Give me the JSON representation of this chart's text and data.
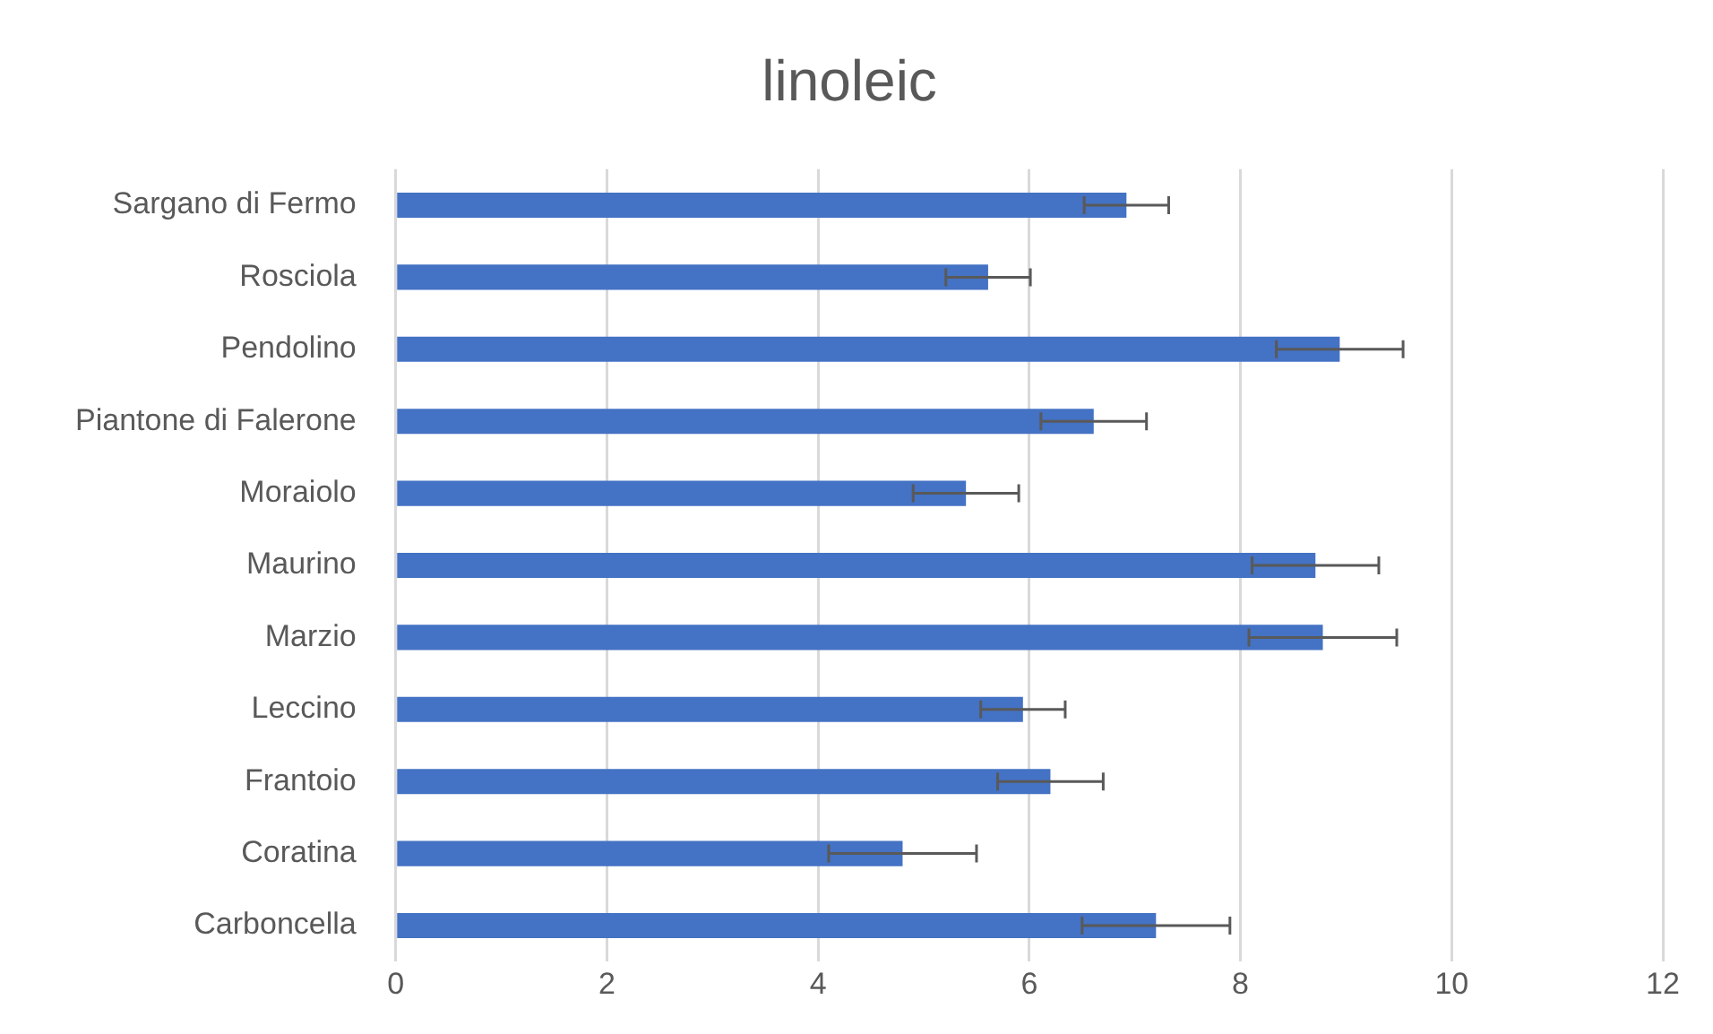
{
  "chart_data": {
    "type": "bar",
    "orientation": "horizontal",
    "title": "linoleic",
    "categories": [
      "Sargano di Fermo",
      "Rosciola",
      "Pendolino",
      "Piantone di Falerone",
      "Moraiolo",
      "Maurino",
      "Marzio",
      "Leccino",
      "Frantoio",
      "Coratina",
      "Carboncella"
    ],
    "values": [
      6.92,
      5.61,
      8.94,
      6.61,
      5.4,
      8.71,
      8.78,
      5.94,
      6.2,
      4.8,
      7.2
    ],
    "errors": [
      0.4,
      0.4,
      0.6,
      0.5,
      0.5,
      0.6,
      0.7,
      0.4,
      0.5,
      0.7,
      0.7
    ],
    "color": "#4472c4",
    "xlim": [
      0,
      12
    ],
    "xticks": [
      0,
      2,
      4,
      6,
      8,
      10,
      12
    ],
    "grid": "x",
    "legend": false
  }
}
